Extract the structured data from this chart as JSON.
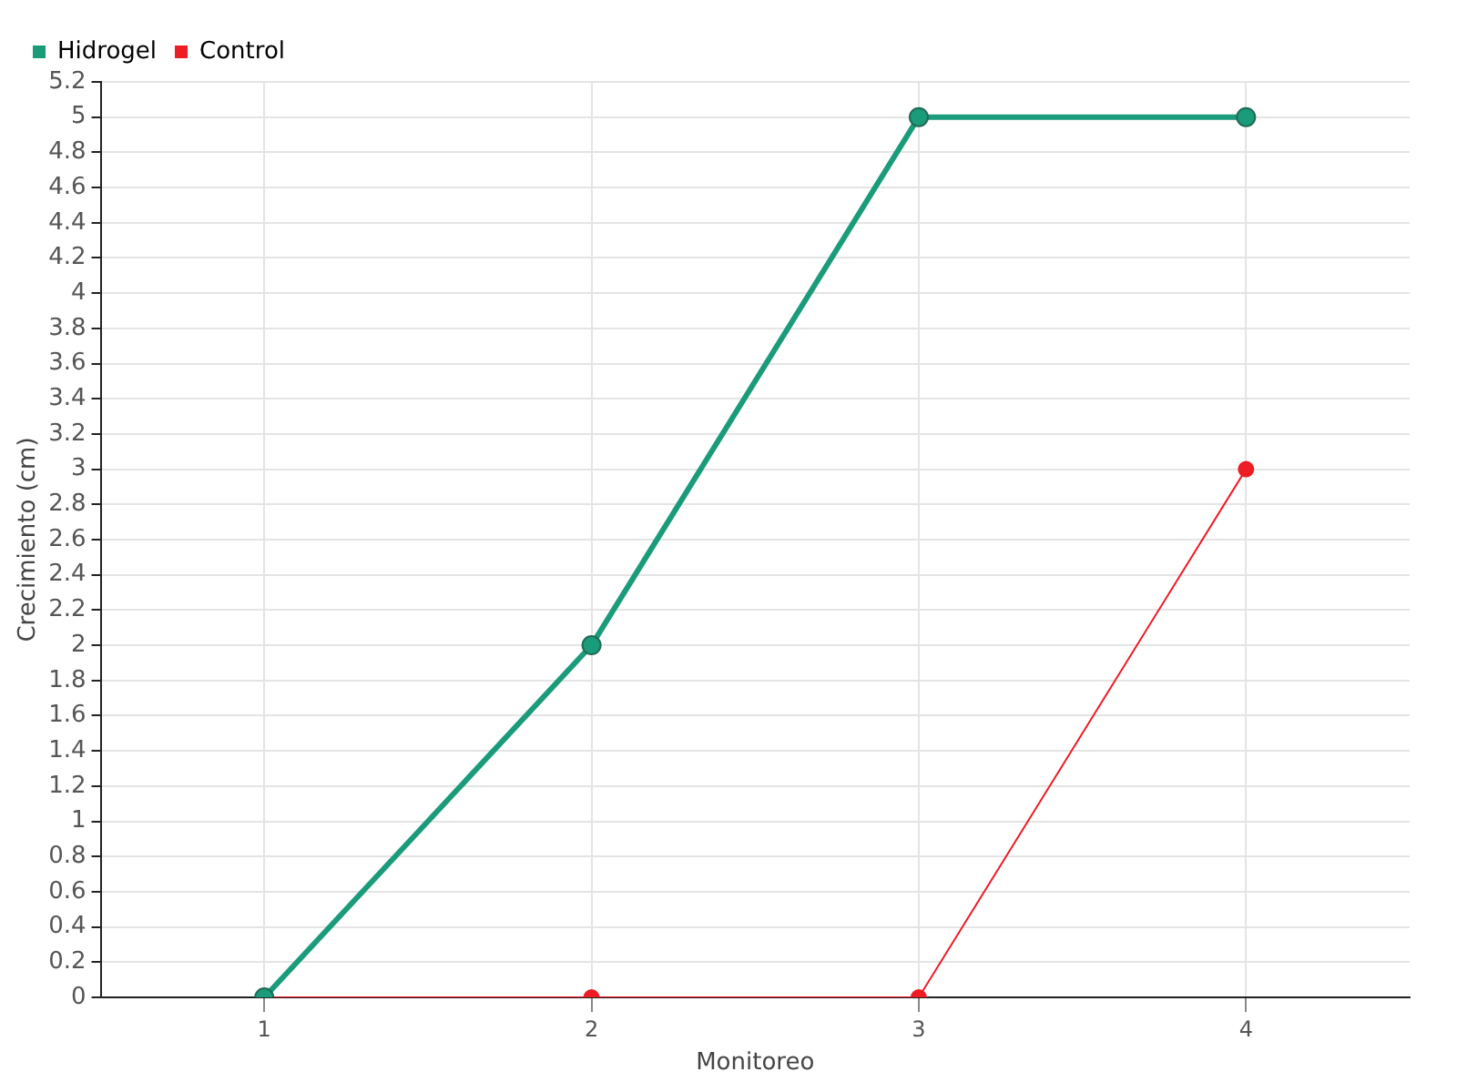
{
  "chart_data": {
    "type": "line",
    "xlabel": "Monitoreo",
    "ylabel": "Crecimiento (cm)",
    "categories": [
      "1",
      "2",
      "3",
      "4"
    ],
    "series": [
      {
        "name": "Hidrogel",
        "color": "#1a9b7a",
        "values": [
          0,
          2,
          5,
          5
        ]
      },
      {
        "name": "Control",
        "color": "#ee1c25",
        "values": [
          0,
          0,
          0,
          3
        ]
      }
    ],
    "ylim": [
      0,
      5.2
    ],
    "yticks": [
      0,
      0.2,
      0.4,
      0.6,
      0.8,
      1,
      1.2,
      1.4,
      1.6,
      1.8,
      2,
      2.2,
      2.4,
      2.6,
      2.8,
      3,
      3.2,
      3.4,
      3.6,
      3.8,
      4,
      4.2,
      4.4,
      4.6,
      4.8,
      5,
      5.2
    ],
    "grid": true,
    "legend": "top left",
    "marker": "circle",
    "line_style": "solid"
  }
}
